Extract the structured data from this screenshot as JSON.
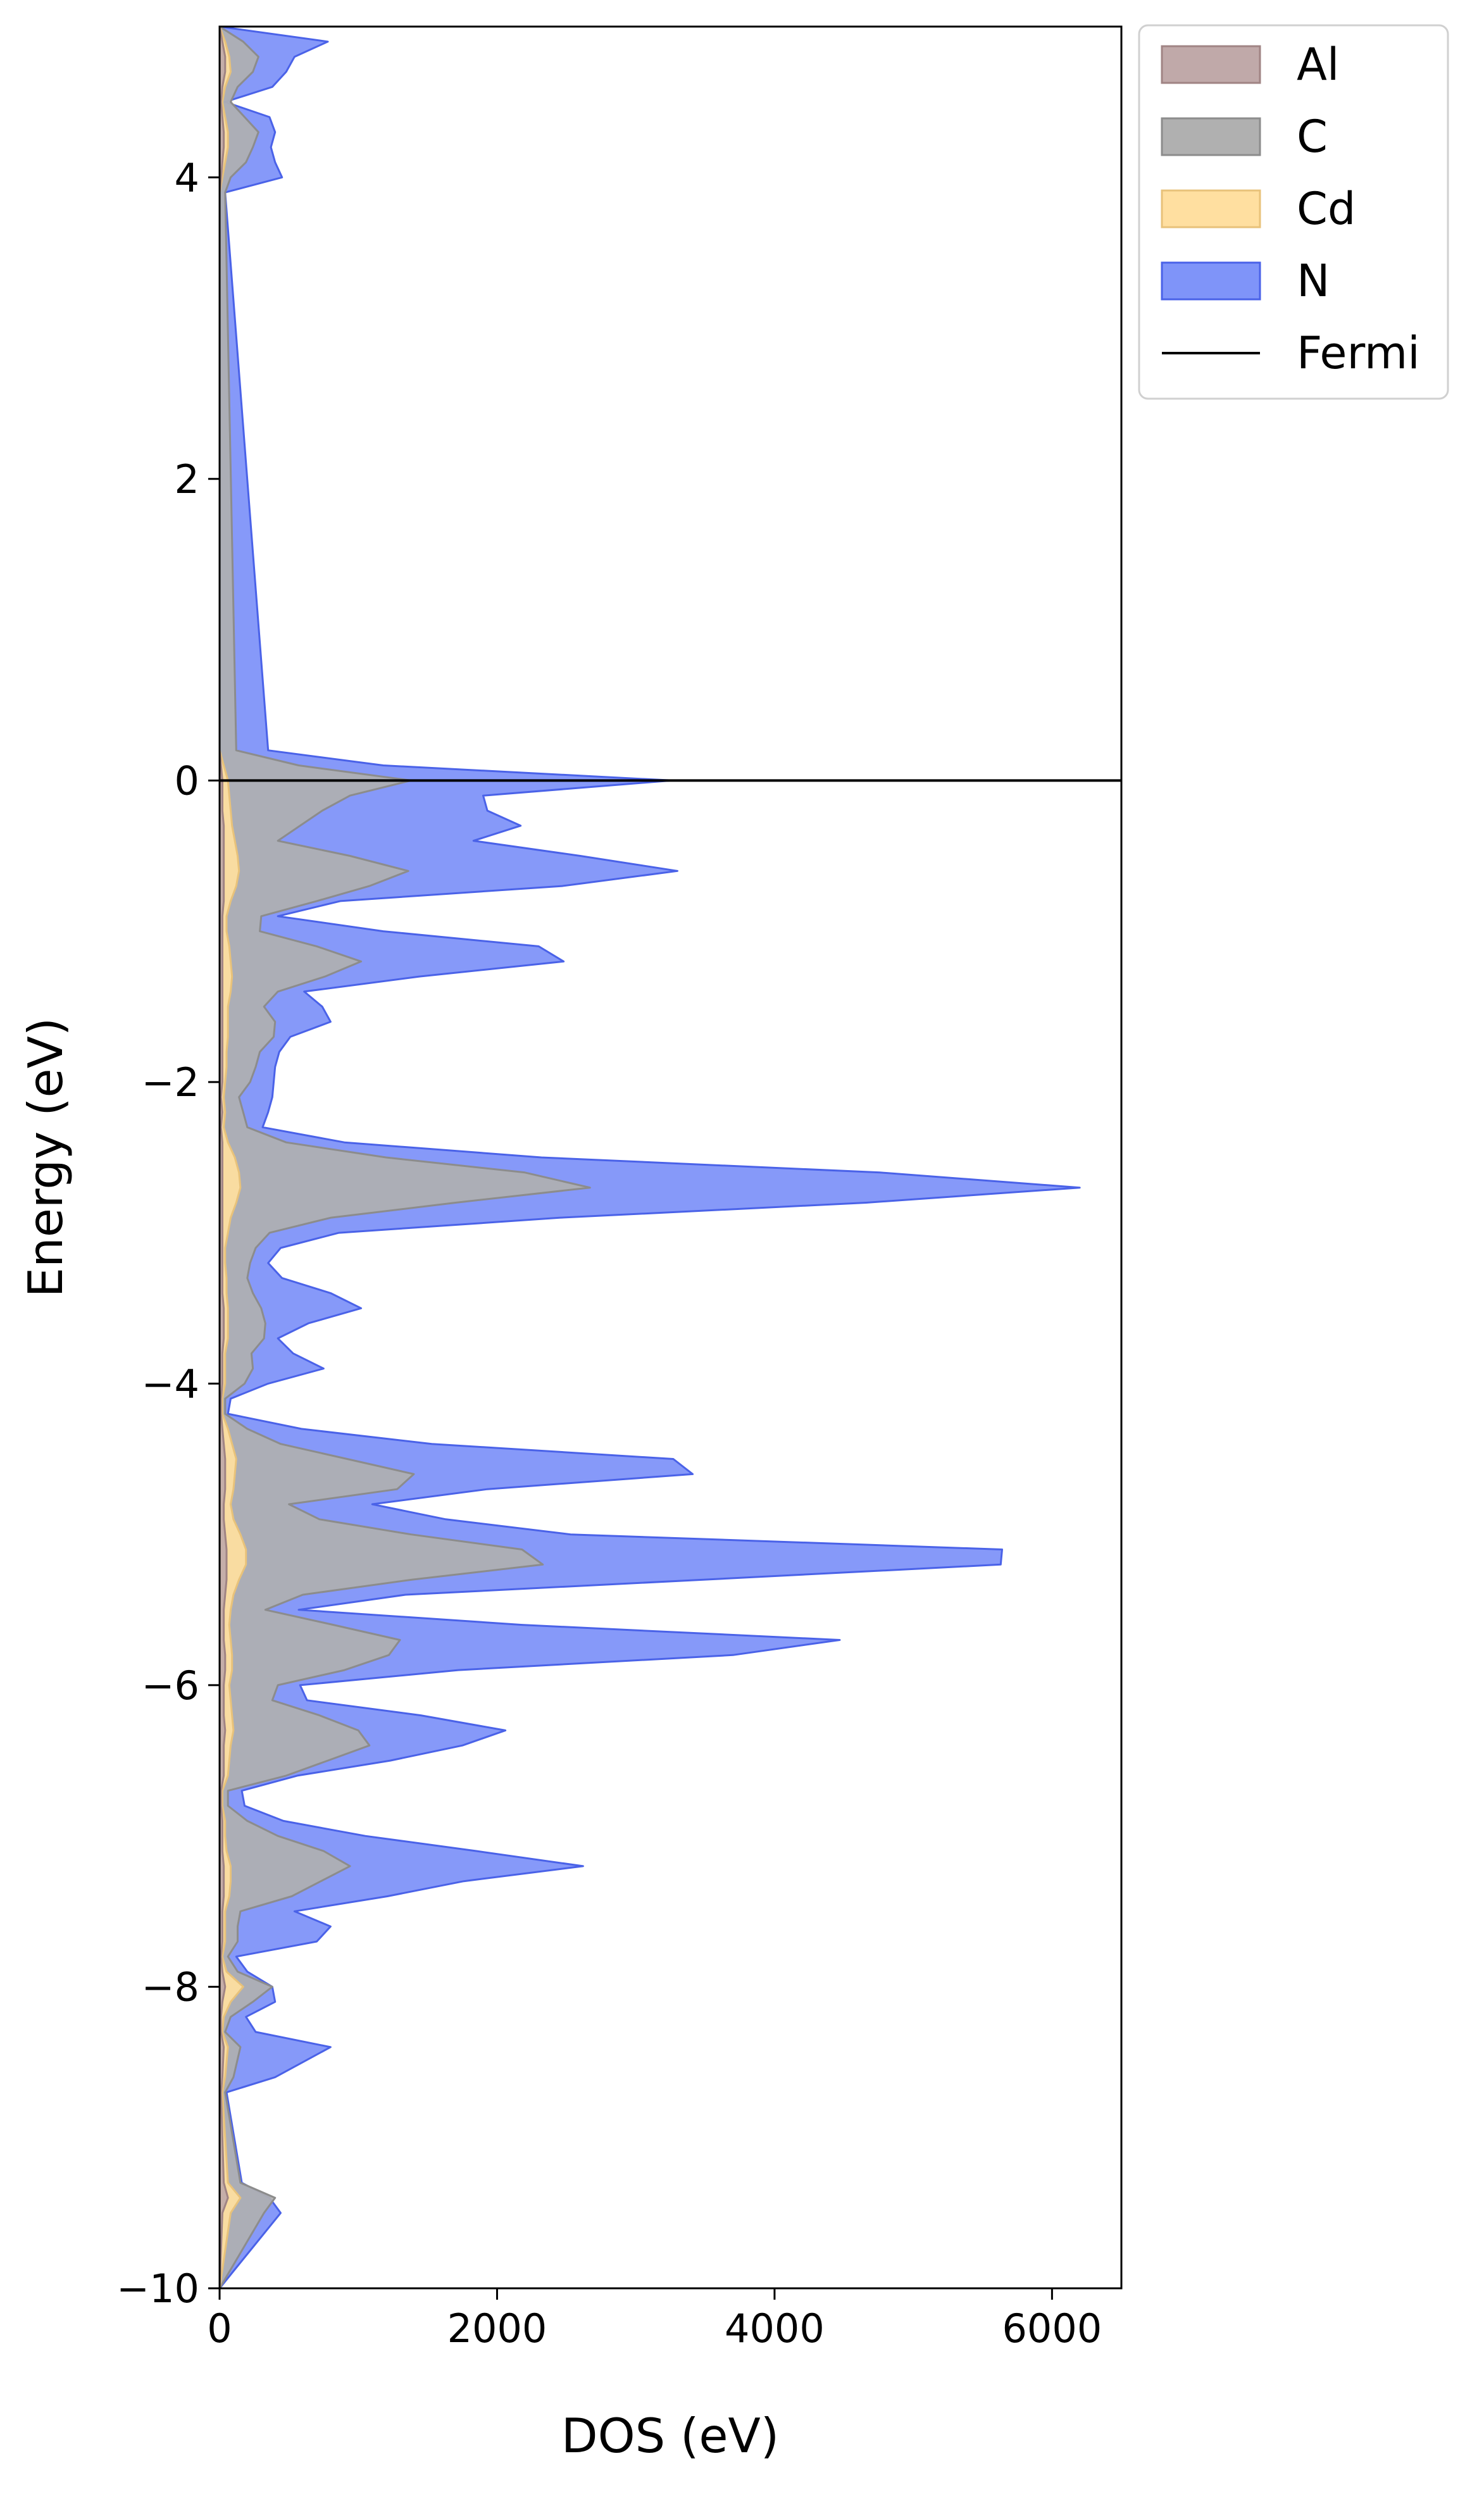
{
  "chart_data": {
    "type": "area",
    "orientation": "horizontal",
    "title": "",
    "xlabel": "DOS (eV)",
    "ylabel": "Energy (eV)",
    "xlim": [
      0,
      6500
    ],
    "ylim": [
      -10,
      5
    ],
    "xticks": [
      {
        "value": 0,
        "label": "0"
      },
      {
        "value": 2000,
        "label": "2000"
      },
      {
        "value": 4000,
        "label": "4000"
      },
      {
        "value": 6000,
        "label": "6000"
      }
    ],
    "yticks": [
      {
        "value": -10,
        "label": "−10"
      },
      {
        "value": -8,
        "label": "−8"
      },
      {
        "value": -6,
        "label": "−6"
      },
      {
        "value": -4,
        "label": "−4"
      },
      {
        "value": -2,
        "label": "−2"
      },
      {
        "value": 0,
        "label": "0"
      },
      {
        "value": 2,
        "label": "2"
      },
      {
        "value": 4,
        "label": "4"
      }
    ],
    "grid": false,
    "legend_position": "outside-top-right",
    "fermi_level": 0,
    "energy": [
      -10.0,
      -9.5,
      -9.4,
      -9.3,
      -8.7,
      -8.6,
      -8.4,
      -8.3,
      -8.2,
      -8.1,
      -8.0,
      -7.9,
      -7.8,
      -7.7,
      -7.6,
      -7.5,
      -7.4,
      -7.3,
      -7.2,
      -7.1,
      -7.0,
      -6.9,
      -6.8,
      -6.7,
      -6.6,
      -6.5,
      -6.4,
      -6.3,
      -6.2,
      -6.1,
      -6.0,
      -5.9,
      -5.8,
      -5.7,
      -5.6,
      -5.5,
      -5.4,
      -5.3,
      -5.2,
      -5.1,
      -5.0,
      -4.9,
      -4.8,
      -4.7,
      -4.6,
      -4.5,
      -4.4,
      -4.3,
      -4.2,
      -4.1,
      -4.0,
      -3.9,
      -3.8,
      -3.7,
      -3.6,
      -3.5,
      -3.4,
      -3.3,
      -3.2,
      -3.1,
      -3.0,
      -2.9,
      -2.8,
      -2.7,
      -2.6,
      -2.5,
      -2.4,
      -2.3,
      -2.2,
      -2.1,
      -2.0,
      -1.9,
      -1.8,
      -1.7,
      -1.6,
      -1.5,
      -1.4,
      -1.3,
      -1.2,
      -1.1,
      -1.0,
      -0.9,
      -0.8,
      -0.7,
      -0.6,
      -0.5,
      -0.4,
      -0.3,
      -0.2,
      -0.1,
      0.0,
      0.1,
      0.2,
      3.9,
      4.0,
      4.1,
      4.2,
      4.3,
      4.4,
      4.5,
      4.6,
      4.7,
      4.8,
      4.9,
      5.0
    ],
    "series": [
      {
        "name": "Al",
        "color": "#c0a9a9",
        "stroke": "#a08484",
        "values": [
          0,
          20,
          60,
          30,
          10,
          20,
          30,
          10,
          10,
          20,
          40,
          20,
          10,
          20,
          20,
          20,
          30,
          30,
          30,
          20,
          20,
          20,
          10,
          10,
          30,
          30,
          30,
          40,
          30,
          30,
          30,
          40,
          40,
          30,
          30,
          30,
          40,
          50,
          50,
          50,
          40,
          30,
          30,
          40,
          40,
          40,
          30,
          20,
          10,
          10,
          20,
          20,
          20,
          30,
          30,
          30,
          20,
          20,
          20,
          20,
          20,
          20,
          20,
          20,
          20,
          20,
          20,
          10,
          20,
          10,
          20,
          20,
          20,
          20,
          20,
          20,
          20,
          20,
          20,
          20,
          20,
          20,
          30,
          30,
          30,
          30,
          30,
          30,
          20,
          20,
          20,
          10,
          0,
          0,
          10,
          20,
          30,
          30,
          20,
          10,
          20,
          40,
          40,
          20,
          0
        ]
      },
      {
        "name": "Cd",
        "color": "#ffdfa0",
        "stroke": "#e8c27a",
        "values": [
          0,
          80,
          150,
          60,
          20,
          40,
          60,
          20,
          30,
          80,
          170,
          50,
          20,
          40,
          40,
          40,
          70,
          80,
          80,
          50,
          40,
          40,
          20,
          20,
          60,
          70,
          80,
          100,
          90,
          80,
          70,
          90,
          90,
          80,
          70,
          80,
          100,
          140,
          190,
          190,
          150,
          100,
          80,
          100,
          110,
          120,
          90,
          60,
          20,
          20,
          40,
          40,
          40,
          60,
          60,
          60,
          50,
          50,
          40,
          40,
          60,
          80,
          120,
          150,
          140,
          110,
          60,
          30,
          40,
          30,
          40,
          50,
          50,
          60,
          60,
          60,
          80,
          90,
          80,
          70,
          50,
          50,
          80,
          120,
          140,
          130,
          110,
          90,
          80,
          70,
          60,
          30,
          0,
          0,
          20,
          40,
          60,
          60,
          40,
          20,
          40,
          80,
          70,
          40,
          0
        ]
      },
      {
        "name": "C",
        "color": "#b0b0b0",
        "stroke": "#8c8c8c",
        "values": [
          0,
          320,
          400,
          150,
          40,
          100,
          150,
          40,
          80,
          240,
          380,
          130,
          60,
          130,
          130,
          150,
          520,
          730,
          940,
          750,
          420,
          200,
          60,
          60,
          480,
          780,
          1080,
          1000,
          720,
          380,
          420,
          900,
          1220,
          1300,
          820,
          330,
          600,
          1390,
          2330,
          2180,
          1380,
          720,
          500,
          1280,
          1400,
          920,
          440,
          200,
          40,
          40,
          180,
          240,
          230,
          320,
          330,
          300,
          240,
          200,
          220,
          260,
          360,
          800,
          1700,
          2670,
          2200,
          1200,
          480,
          200,
          170,
          140,
          220,
          260,
          290,
          390,
          400,
          320,
          420,
          760,
          1020,
          700,
          290,
          300,
          700,
          1080,
          1360,
          940,
          420,
          580,
          740,
          940,
          1380,
          570,
          120,
          40,
          80,
          190,
          240,
          280,
          180,
          80,
          130,
          240,
          280,
          170,
          0
        ]
      },
      {
        "name": "N",
        "color": "#7f94f9",
        "stroke": "#4a62e8",
        "values": [
          0,
          440,
          360,
          160,
          50,
          400,
          800,
          260,
          190,
          400,
          380,
          200,
          120,
          700,
          800,
          540,
          1210,
          1760,
          2620,
          1850,
          1050,
          460,
          180,
          160,
          560,
          1230,
          1750,
          2060,
          1450,
          630,
          580,
          1720,
          3700,
          4470,
          2180,
          570,
          1340,
          3500,
          5630,
          5640,
          2530,
          1630,
          1100,
          1930,
          3410,
          3270,
          1530,
          590,
          60,
          80,
          350,
          750,
          530,
          420,
          640,
          1020,
          800,
          450,
          350,
          440,
          860,
          2450,
          4660,
          6200,
          4760,
          2320,
          900,
          310,
          350,
          380,
          390,
          400,
          430,
          510,
          800,
          740,
          610,
          1440,
          2480,
          2300,
          1180,
          420,
          870,
          2470,
          3300,
          2600,
          1830,
          2170,
          1930,
          1900,
          3260,
          1180,
          350,
          40,
          450,
          400,
          370,
          400,
          360,
          40,
          380,
          480,
          540,
          780,
          0
        ]
      }
    ],
    "legend": [
      {
        "label": "Al",
        "kind": "patch",
        "color": "#c0a9a9"
      },
      {
        "label": "C",
        "kind": "patch",
        "color": "#b0b0b0"
      },
      {
        "label": "Cd",
        "kind": "patch",
        "color": "#ffdfa0"
      },
      {
        "label": "N",
        "kind": "patch",
        "color": "#7f94f9"
      },
      {
        "label": "Fermi",
        "kind": "line",
        "color": "#000000"
      }
    ]
  }
}
